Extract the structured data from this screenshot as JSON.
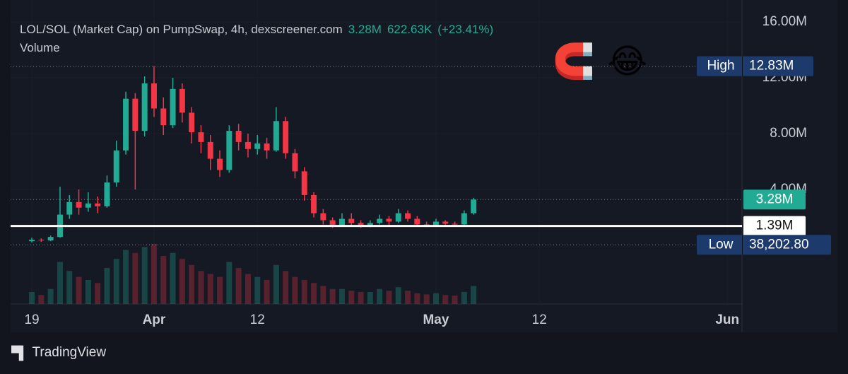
{
  "chart_data": {
    "type": "candlestick",
    "title": "LOL/SOL (Market Cap) on PumpSwap, 4h, dexscreener.com",
    "header_values": [
      "3.28M",
      "622.63K",
      "(+23.41%)"
    ],
    "volume_label": "Volume",
    "stickers": [
      "🧲",
      "😂"
    ],
    "brand": "TradingView",
    "up_color": "#22ab94",
    "down_color": "#f23645",
    "x": [
      0,
      1,
      2,
      3,
      4,
      5,
      6,
      7,
      8,
      9,
      10,
      11,
      12,
      13,
      14,
      15,
      16,
      17,
      18,
      19,
      20,
      21,
      22,
      23,
      24,
      25,
      26,
      27,
      28,
      29,
      30,
      31,
      32,
      33,
      34,
      35,
      36,
      37,
      38,
      39,
      40,
      41,
      42,
      43,
      44,
      45,
      46,
      47
    ],
    "open": [
      300000,
      400000,
      350000,
      600000,
      2200000,
      3100000,
      2700000,
      3000000,
      2800000,
      4500000,
      6800000,
      10500000,
      8200000,
      11600000,
      9800000,
      8600000,
      11200000,
      9500000,
      8100000,
      7400000,
      6200000,
      5400000,
      8200000,
      7400000,
      6900000,
      7300000,
      6800000,
      8900000,
      6600000,
      5300000,
      3600000,
      2300000,
      1800000,
      1450000,
      1900000,
      1600000,
      1400000,
      1600000,
      1900000,
      1700000,
      2300000,
      1900000,
      1500000,
      1450000,
      1700000,
      1550000,
      1500000,
      2300000
    ],
    "close": [
      400000,
      350000,
      600000,
      2200000,
      3100000,
      2700000,
      3000000,
      2800000,
      4500000,
      6800000,
      10500000,
      8200000,
      11600000,
      9800000,
      8600000,
      11200000,
      9500000,
      8100000,
      7400000,
      6200000,
      5400000,
      8200000,
      7400000,
      6900000,
      7300000,
      6800000,
      8900000,
      6600000,
      5300000,
      3600000,
      2300000,
      1800000,
      1450000,
      1900000,
      1600000,
      1400000,
      1600000,
      1900000,
      1700000,
      2300000,
      1900000,
      1500000,
      1450000,
      1700000,
      1550000,
      1500000,
      2300000,
      3280000
    ],
    "high": [
      550000,
      500000,
      700000,
      4200000,
      3600000,
      4000000,
      3800000,
      3500000,
      5000000,
      7500000,
      11000000,
      10900000,
      12100000,
      12830000,
      10600000,
      12000000,
      11600000,
      9900000,
      8600000,
      7900000,
      6800000,
      8600000,
      8700000,
      8000000,
      7900000,
      7700000,
      9900000,
      9200000,
      6900000,
      5600000,
      3800000,
      2600000,
      2000000,
      2300000,
      2300000,
      1800000,
      1800000,
      2200000,
      2100000,
      2600000,
      2500000,
      2100000,
      1700000,
      1900000,
      1800000,
      1700000,
      2500000,
      3400000
    ],
    "low": [
      200000,
      250000,
      300000,
      550000,
      1900000,
      2200000,
      2400000,
      2300000,
      2700000,
      4200000,
      6500000,
      4000000,
      7800000,
      9200000,
      7900000,
      8400000,
      8800000,
      7300000,
      6600000,
      5400000,
      4900000,
      5200000,
      6800000,
      6300000,
      6500000,
      6200000,
      6700000,
      6200000,
      4800000,
      3200000,
      2000000,
      1500000,
      1250000,
      1350000,
      1400000,
      1250000,
      1300000,
      1500000,
      1450000,
      1600000,
      1700000,
      1350000,
      1300000,
      1350000,
      1400000,
      1350000,
      1450000,
      2200000
    ],
    "volume": [
      20,
      15,
      25,
      70,
      55,
      45,
      40,
      35,
      60,
      75,
      90,
      85,
      95,
      100,
      80,
      85,
      75,
      65,
      55,
      50,
      45,
      70,
      60,
      50,
      45,
      40,
      65,
      55,
      45,
      40,
      35,
      30,
      25,
      25,
      22,
      20,
      20,
      25,
      22,
      28,
      22,
      18,
      16,
      18,
      15,
      14,
      20,
      30
    ],
    "xlim": [
      -2.26,
      75.56
    ],
    "xticks": [
      {
        "value": 0,
        "label": "19"
      },
      {
        "value": 13,
        "label": "Apr"
      },
      {
        "value": 24,
        "label": "12"
      },
      {
        "value": 43,
        "label": "May"
      },
      {
        "value": 54,
        "label": "12"
      },
      {
        "value": 74,
        "label": "Jun"
      }
    ],
    "ylim": [
      -4200000,
      17570000
    ],
    "yticks": [
      {
        "value": 16000000,
        "label": "16.00M"
      },
      {
        "value": 12000000,
        "label": "12.00M"
      },
      {
        "value": 8000000,
        "label": "8.00M"
      },
      {
        "value": 4000000,
        "label": "4.00M"
      }
    ],
    "price_lines": [
      {
        "name": "High",
        "value": 12830000,
        "value_label": "12.83M",
        "color": "#1c3a6b",
        "style": "dotted"
      },
      {
        "value": 3280000,
        "value_label": "3.28M",
        "color": "#22ab94",
        "style": "dotted"
      },
      {
        "value": 1390000,
        "value_label": "1.39M",
        "color": "#ffffff",
        "style": "solid"
      },
      {
        "name": "Low",
        "value": 38202.8,
        "value_label": "38,202.80",
        "color": "#1c3a6b",
        "style": "dotted"
      }
    ]
  }
}
